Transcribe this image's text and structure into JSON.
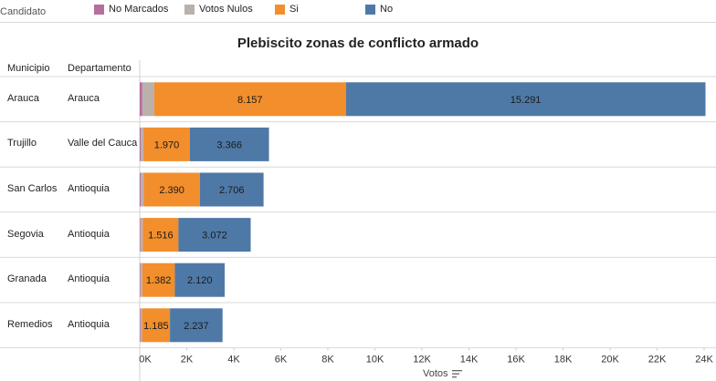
{
  "legend": {
    "field": "Candidato",
    "items": [
      {
        "label": "No Marcados",
        "color": "#b86d9f"
      },
      {
        "label": "Votos Nulos",
        "color": "#bab0ac"
      },
      {
        "label": "Si",
        "color": "#f28e2b"
      },
      {
        "label": "No",
        "color": "#4e79a7"
      }
    ]
  },
  "headers": {
    "municipio": "Municipio",
    "departamento": "Departamento"
  },
  "chart_data": {
    "type": "bar",
    "orientation": "horizontal",
    "stacked": true,
    "title": "Plebiscito zonas de conflicto armado",
    "xlabel": "Votos",
    "xlim": [
      0,
      24000
    ],
    "xticks": [
      "0K",
      "2K",
      "4K",
      "6K",
      "8K",
      "10K",
      "12K",
      "14K",
      "16K",
      "18K",
      "20K",
      "22K",
      "24K"
    ],
    "rows": [
      {
        "municipio": "Arauca",
        "departamento": "Arauca"
      },
      {
        "municipio": "Trujillo",
        "departamento": "Valle del Cauca"
      },
      {
        "municipio": "San Carlos",
        "departamento": "Antioquia"
      },
      {
        "municipio": "Segovia",
        "departamento": "Antioquia"
      },
      {
        "municipio": "Granada",
        "departamento": "Antioquia"
      },
      {
        "municipio": "Remedios",
        "departamento": "Antioquia"
      }
    ],
    "series": [
      {
        "name": "No Marcados",
        "color": "#b86d9f",
        "values": [
          110,
          40,
          40,
          30,
          30,
          30
        ]
      },
      {
        "name": "Votos Nulos",
        "color": "#bab0ac",
        "values": [
          500,
          120,
          130,
          100,
          80,
          70
        ]
      },
      {
        "name": "Si",
        "color": "#f28e2b",
        "values": [
          8157,
          1970,
          2390,
          1516,
          1382,
          1185
        ],
        "labels": [
          "8.157",
          "1.970",
          "2.390",
          "1.516",
          "1.382",
          "1.185"
        ]
      },
      {
        "name": "No",
        "color": "#4e79a7",
        "values": [
          15291,
          3366,
          2706,
          3072,
          2120,
          2237
        ],
        "labels": [
          "15.291",
          "3.366",
          "2.706",
          "3.072",
          "2.120",
          "2.237"
        ]
      }
    ]
  }
}
